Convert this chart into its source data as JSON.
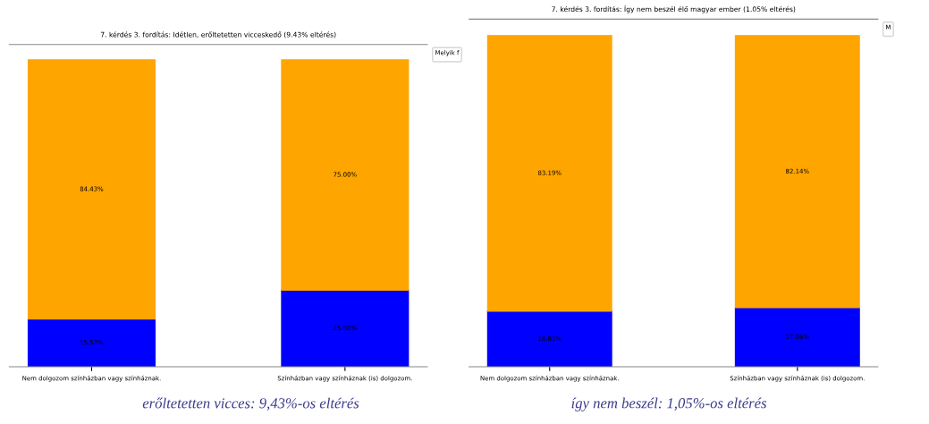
{
  "chart_data": [
    {
      "type": "bar",
      "title": "7. kérdés 3. fordítás: Idétlen, erőltetetten vicceskedő (9.43% eltérés)",
      "categories": [
        "Nem dolgozom színházban vagy színháznak.",
        "Színházban vagy színháznak (is) dolgozom."
      ],
      "stacked": true,
      "legend_title": "Melyik f",
      "grid": false,
      "series": [
        {
          "color": "#0000ff",
          "values": [
            15.57,
            25.0
          ],
          "value_labels": [
            "15.57%",
            "25.00%"
          ]
        },
        {
          "color": "#ffa500",
          "values": [
            84.43,
            75.0
          ],
          "value_labels": [
            "84.43%",
            "75.00%"
          ]
        }
      ],
      "annotations": [
        "erőltetetten vicces: 9,43%-os eltérés"
      ]
    },
    {
      "type": "bar",
      "title": "7. kérdés 3. fordítás: Így nem beszél élő magyar ember (1.05% eltérés)",
      "categories": [
        "Nem dolgozom színházban vagy színháznak.",
        "Színházban vagy színháznak (is) dolgozom."
      ],
      "stacked": true,
      "legend_title": "M",
      "grid": false,
      "series": [
        {
          "color": "#0000ff",
          "values": [
            16.81,
            17.86
          ],
          "value_labels": [
            "16.81%",
            "17.86%"
          ]
        },
        {
          "color": "#ffa500",
          "values": [
            83.19,
            82.14
          ],
          "value_labels": [
            "83.19%",
            "82.14%"
          ]
        }
      ],
      "annotations": [
        "így nem beszél: 1,05%-os eltérés"
      ]
    }
  ]
}
